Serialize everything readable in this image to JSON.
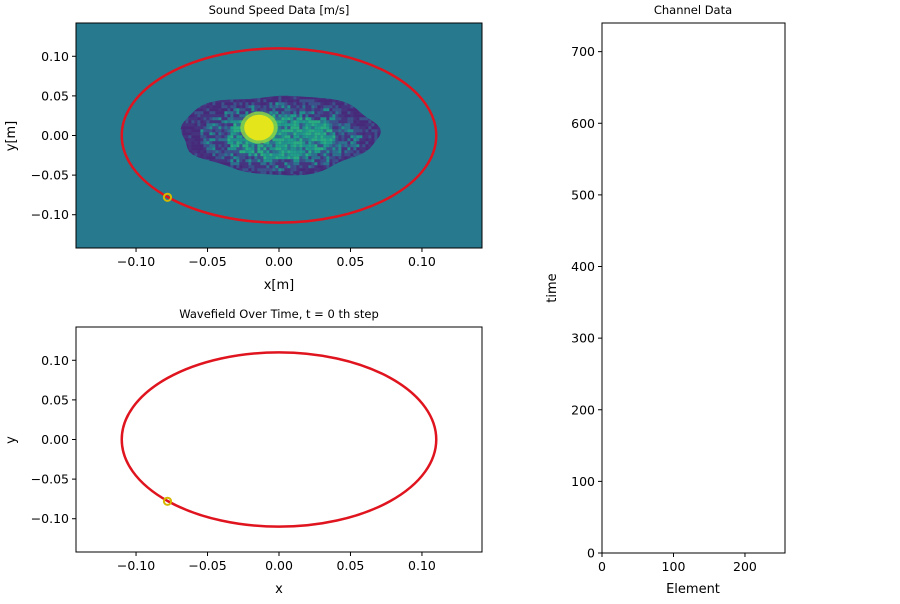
{
  "chart_data": [
    {
      "type": "heatmap",
      "title": "Sound Speed Data [m/s]",
      "xlabel": "x[m]",
      "ylabel": "y[m]",
      "xlim": [
        -0.142,
        0.142
      ],
      "ylim": [
        -0.142,
        0.142
      ],
      "xticks": [
        -0.1,
        -0.05,
        0.0,
        0.05,
        0.1
      ],
      "yticks": [
        -0.1,
        -0.05,
        0.0,
        0.05,
        0.1
      ],
      "xtick_labels": [
        "−0.10",
        "−0.05",
        "0.00",
        "0.05",
        "0.10"
      ],
      "ytick_labels": [
        "−0.10",
        "−0.05",
        "0.00",
        "0.05",
        "0.10"
      ],
      "background_color": "#277a8e",
      "object": {
        "center_x": 0.0,
        "center_y": 0.0,
        "half_width_x": 0.069,
        "half_height_y": 0.052,
        "inclusion_center": [
          -0.014,
          0.01
        ],
        "inclusion_radius": 0.009
      },
      "transducer_ring": {
        "center": [
          0.0,
          0.0
        ],
        "radius_x": 0.11,
        "radius_y": 0.11,
        "color": "#e0141e"
      },
      "source_element": {
        "x": -0.078,
        "y": -0.078,
        "color": "#d4b800"
      },
      "grid": false
    },
    {
      "type": "line",
      "title": "Wavefield Over Time, t = 0 th step",
      "xlabel": "x",
      "ylabel": "y",
      "xlim": [
        -0.142,
        0.142
      ],
      "ylim": [
        -0.142,
        0.142
      ],
      "xticks": [
        -0.1,
        -0.05,
        0.0,
        0.05,
        0.1
      ],
      "yticks": [
        -0.1,
        -0.05,
        0.0,
        0.05,
        0.1
      ],
      "xtick_labels": [
        "−0.10",
        "−0.05",
        "0.00",
        "0.05",
        "0.10"
      ],
      "ytick_labels": [
        "−0.10",
        "−0.05",
        "0.00",
        "0.05",
        "0.10"
      ],
      "transducer_ring": {
        "center": [
          0.0,
          0.0
        ],
        "radius_x": 0.11,
        "radius_y": 0.11,
        "color": "#e0141e"
      },
      "source_element": {
        "x": -0.078,
        "y": -0.078,
        "color": "#d4b800"
      },
      "grid": false
    },
    {
      "type": "heatmap",
      "title": "Channel Data",
      "xlabel": "Element",
      "ylabel": "time",
      "xlim": [
        0,
        256
      ],
      "ylim": [
        0,
        740
      ],
      "xticks": [
        0,
        100,
        200
      ],
      "yticks": [
        0,
        100,
        200,
        300,
        400,
        500,
        600,
        700
      ],
      "xtick_labels": [
        "0",
        "100",
        "200"
      ],
      "ytick_labels": [
        "0",
        "100",
        "200",
        "300",
        "400",
        "500",
        "600",
        "700"
      ],
      "grid": false
    }
  ]
}
